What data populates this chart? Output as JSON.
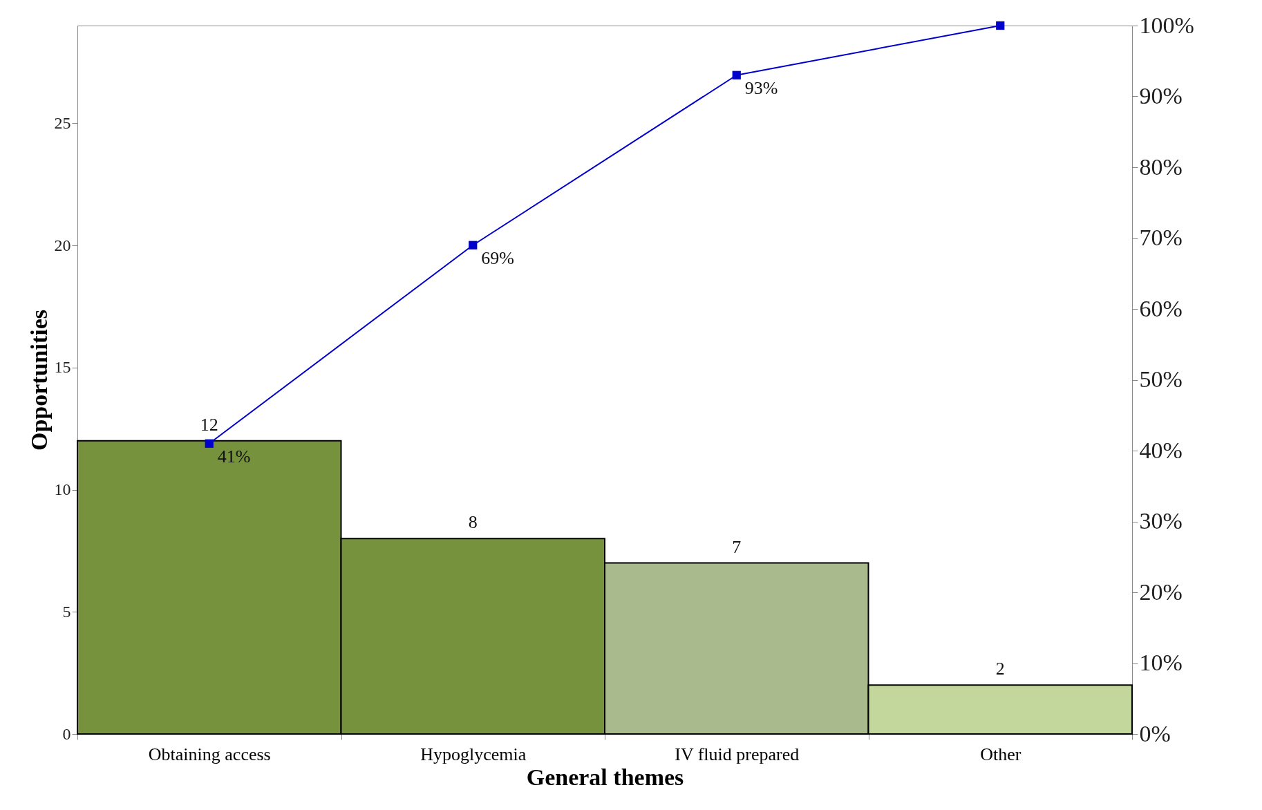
{
  "chart_data": {
    "type": "bar",
    "xlabel": "General themes",
    "ylabel": "Opportunities",
    "categories": [
      "Obtaining  access",
      "Hypoglycemia",
      "IV fluid prepared",
      "Other"
    ],
    "series": [
      {
        "values": [
          12,
          8,
          7,
          2
        ],
        "colors": [
          "#76923c",
          "#76923c",
          "#a9ba8c",
          "#c3d69b"
        ]
      },
      {
        "type": "line",
        "axis": "y2",
        "color": "#0000cc",
        "values": [
          41,
          69,
          93,
          100
        ],
        "value_labels": [
          "41%",
          "69%",
          "93%",
          null
        ]
      }
    ],
    "data_labels": true,
    "marker": "square",
    "grid": false,
    "ylim": [
      0,
      29
    ],
    "yticks": [
      0,
      5,
      10,
      15,
      20,
      25
    ],
    "y2lim": [
      0,
      100
    ],
    "y2ticks": [
      {
        "value": 0,
        "label": "0%"
      },
      {
        "value": 10,
        "label": "10%"
      },
      {
        "value": 20,
        "label": "20%"
      },
      {
        "value": 30,
        "label": "30%"
      },
      {
        "value": 40,
        "label": "40%"
      },
      {
        "value": 50,
        "label": "50%"
      },
      {
        "value": 60,
        "label": "60%"
      },
      {
        "value": 70,
        "label": "70%"
      },
      {
        "value": 80,
        "label": "80%"
      },
      {
        "value": 90,
        "label": "90%"
      },
      {
        "value": 100,
        "label": "100%"
      }
    ]
  }
}
